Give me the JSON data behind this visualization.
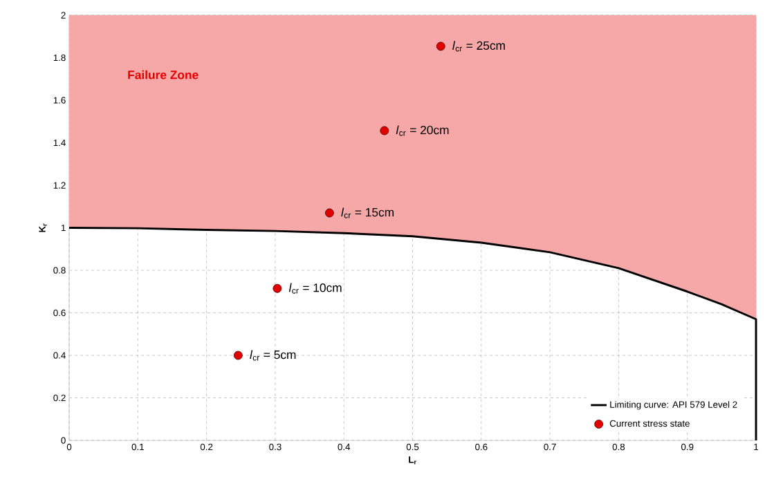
{
  "chart_data": {
    "type": "line",
    "xlabel": "**L$_{r}$**",
    "ylabel": "**K$_{r}$**",
    "xlim": [
      0,
      1
    ],
    "ylim": [
      0,
      2
    ],
    "xticks": [
      0,
      0.1,
      0.2,
      0.3,
      0.4,
      0.5,
      0.6,
      0.7,
      0.8,
      0.9,
      1
    ],
    "yticks": [
      0,
      0.2,
      0.4,
      0.6,
      0.8,
      1,
      1.2,
      1.4,
      1.6,
      1.8,
      2
    ],
    "grid": true,
    "legend": "bottom right",
    "annotations": [
      "Failure Zone",
      {
        "text": "*l*$_{cr}$ = 5cm",
        "x": 0.246,
        "y": 0.4
      },
      {
        "text": "*l*$_{cr}$ = 10cm",
        "x": 0.303,
        "y": 0.715
      },
      {
        "text": "*l*$_{cr}$ = 15cm",
        "x": 0.379,
        "y": 1.07
      },
      {
        "text": "*l*$_{cr}$ = 20cm",
        "x": 0.459,
        "y": 1.457
      },
      {
        "text": "*l*$_{cr}$ = 25cm",
        "x": 0.541,
        "y": 1.854
      }
    ],
    "series": [
      {
        "name": "Limiting curve: API 579 Level 2",
        "color": "#000000",
        "marker": "none",
        "x": [
          0,
          0.1,
          0.2,
          0.3,
          0.4,
          0.5,
          0.6,
          0.7,
          0.8,
          0.9,
          0.95,
          1,
          1
        ],
        "values": [
          1,
          0.998,
          0.99,
          0.985,
          0.975,
          0.96,
          0.93,
          0.885,
          0.81,
          0.7,
          0.64,
          0.57,
          0
        ],
        "lower": [
          1,
          0.998,
          0.99,
          0.985,
          0.975,
          0.96,
          0.93,
          0.885,
          0.81,
          0.7,
          0.64,
          0.57,
          0
        ],
        "upper": [
          2,
          2,
          2,
          2,
          2,
          2,
          2,
          2,
          2,
          2,
          2,
          2,
          2
        ]
      },
      {
        "name": "Current stress state",
        "type": "scatter",
        "color": "#e00000",
        "marker": "circle",
        "x": [
          0.246,
          0.303,
          0.379,
          0.459,
          0.541
        ],
        "values": [
          0.4,
          0.715,
          1.07,
          1.457,
          1.854
        ]
      }
    ]
  }
}
